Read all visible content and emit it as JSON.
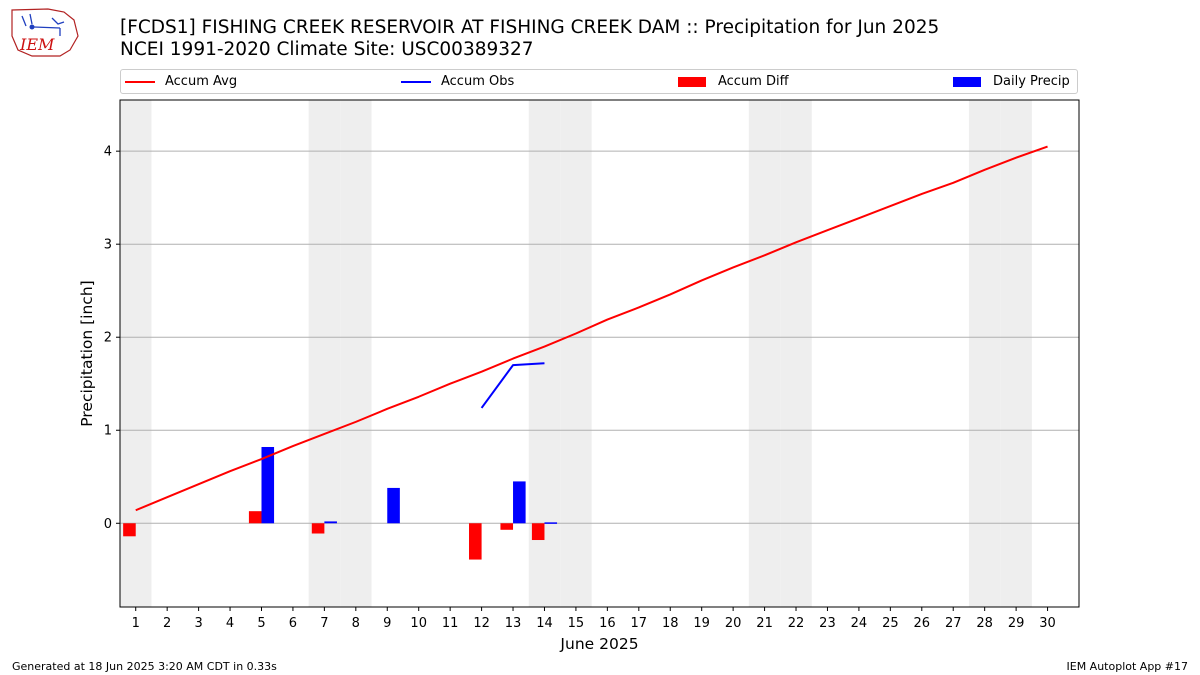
{
  "header": {
    "title_line1": "[FCDS1] FISHING CREEK RESERVOIR  AT FISHING CREEK DAM :: Precipitation for Jun 2025",
    "title_line2": "NCEI 1991-2020 Climate Site: USC00389327",
    "logo_text": "IEM"
  },
  "legend": {
    "items": [
      {
        "label": "Accum Avg",
        "color": "#ff0000",
        "kind": "line"
      },
      {
        "label": "Accum Obs",
        "color": "#0000ff",
        "kind": "line"
      },
      {
        "label": "Accum Diff",
        "color": "#ff0000",
        "kind": "bar"
      },
      {
        "label": "Daily Precip",
        "color": "#0000ff",
        "kind": "bar"
      }
    ]
  },
  "footer": {
    "left": "Generated at 18 Jun 2025 3:20 AM CDT in 0.33s",
    "right": "IEM Autoplot App #17"
  },
  "chart_data": {
    "type": "bar",
    "xlabel": "June 2025",
    "ylabel": "Precipitation [inch]",
    "xlim": [
      0.5,
      31.0
    ],
    "ylim": [
      -0.9,
      4.55
    ],
    "yticks": [
      0,
      1,
      2,
      3,
      4
    ],
    "categories": [
      "1",
      "2",
      "3",
      "4",
      "5",
      "6",
      "7",
      "8",
      "9",
      "10",
      "11",
      "12",
      "13",
      "14",
      "15",
      "16",
      "17",
      "18",
      "19",
      "20",
      "21",
      "22",
      "23",
      "24",
      "25",
      "26",
      "27",
      "28",
      "29",
      "30"
    ],
    "weekend_days": [
      1,
      7,
      8,
      14,
      15,
      21,
      22,
      28,
      29
    ],
    "grid": "horizontal",
    "legend_position": "top",
    "series": [
      {
        "name": "Accum Avg",
        "type": "line",
        "color": "#ff0000",
        "x": [
          1,
          2,
          3,
          4,
          5,
          6,
          7,
          8,
          9,
          10,
          11,
          12,
          13,
          14,
          15,
          16,
          17,
          18,
          19,
          20,
          21,
          22,
          23,
          24,
          25,
          26,
          27,
          28,
          29,
          30
        ],
        "values": [
          0.14,
          0.28,
          0.42,
          0.56,
          0.69,
          0.83,
          0.96,
          1.09,
          1.23,
          1.36,
          1.5,
          1.63,
          1.77,
          1.9,
          2.04,
          2.19,
          2.32,
          2.46,
          2.61,
          2.75,
          2.88,
          3.02,
          3.15,
          3.28,
          3.41,
          3.54,
          3.66,
          3.8,
          3.93,
          4.05
        ]
      },
      {
        "name": "Accum Obs",
        "type": "line",
        "color": "#0000ff",
        "x": [
          12,
          13,
          14
        ],
        "values": [
          1.24,
          1.7,
          1.72
        ]
      },
      {
        "name": "Accum Diff",
        "type": "bar",
        "color": "#ff0000",
        "x": [
          1,
          5,
          7,
          12,
          13,
          14
        ],
        "values": [
          -0.14,
          0.13,
          -0.11,
          -0.39,
          -0.07,
          -0.18
        ]
      },
      {
        "name": "Daily Precip",
        "type": "bar",
        "color": "#0000ff",
        "x": [
          5,
          7,
          9,
          13,
          14
        ],
        "values": [
          0.82,
          0.02,
          0.38,
          0.45,
          0.01
        ]
      }
    ]
  }
}
